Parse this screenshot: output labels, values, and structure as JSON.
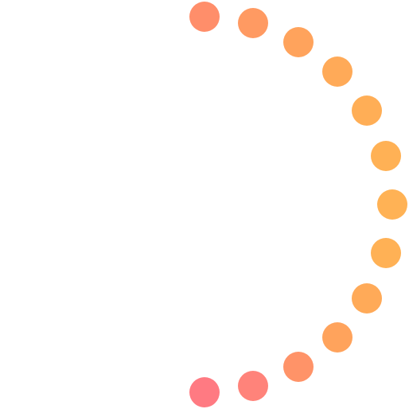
{
  "spinner": {
    "icon": "loading-spinner-icon",
    "dot_count": 13,
    "colors": [
      "#FF8E6A",
      "#FF9A62",
      "#FFA35C",
      "#FFAA58",
      "#FFAE56",
      "#FFB155",
      "#FFB255",
      "#FFB155",
      "#FFAA58",
      "#FFA35C",
      "#FF9368",
      "#FF837A",
      "#FF7A82"
    ]
  }
}
